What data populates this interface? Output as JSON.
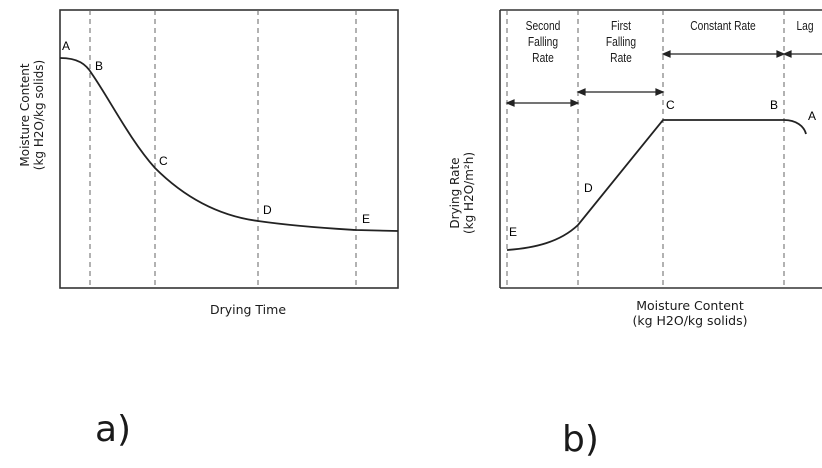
{
  "panel_a": {
    "tag": "a)",
    "y_label_line1": "Moisture Content",
    "y_label_line2": "(kg H2O/kg solids)",
    "x_label": "Drying Time",
    "points": [
      "A",
      "B",
      "C",
      "D",
      "E"
    ]
  },
  "panel_b": {
    "tag": "b)",
    "y_label_line1": "Drying Rate",
    "y_label_line2": "(kg H2O/m²h)",
    "x_label_line1": "Moisture Content",
    "x_label_line2": "(kg H2O/kg solids)",
    "regions": {
      "second_falling_1": "Second",
      "second_falling_2": "Falling",
      "second_falling_3": "Rate",
      "first_falling_1": "First",
      "first_falling_2": "Falling",
      "first_falling_3": "Rate",
      "constant": "Constant Rate",
      "lag": "Lag"
    },
    "points": [
      "E",
      "D",
      "C",
      "B",
      "A"
    ]
  },
  "colors": {
    "line": "#222222",
    "dash": "#555555",
    "axis": "#333333"
  }
}
